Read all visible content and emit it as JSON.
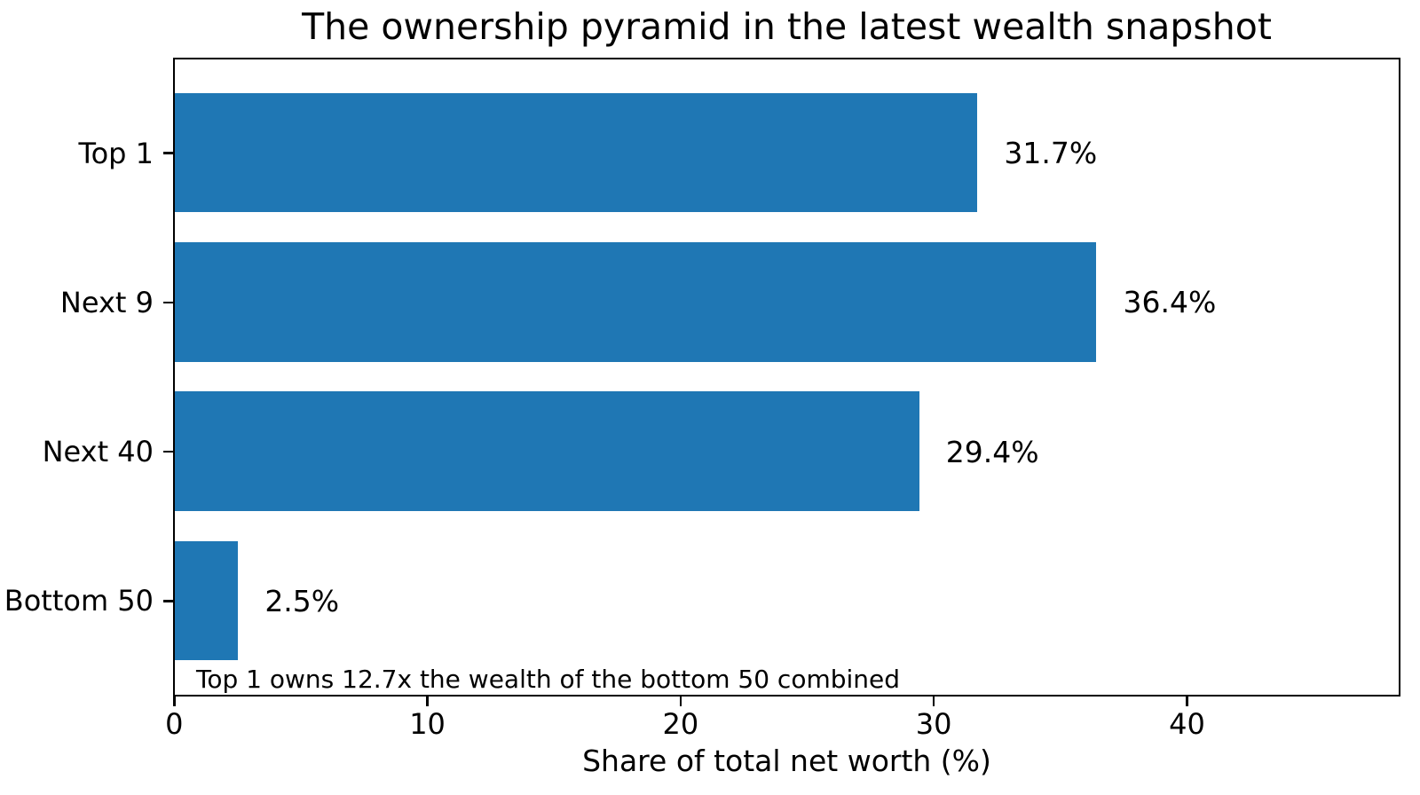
{
  "chart_data": {
    "type": "bar",
    "orientation": "horizontal",
    "title": "The ownership pyramid in the latest wealth snapshot",
    "xlabel": "Share of total net worth (%)",
    "ylabel": "",
    "categories": [
      "Top 1",
      "Next 9",
      "Next 40",
      "Bottom 50"
    ],
    "values": [
      31.7,
      36.4,
      29.4,
      2.5
    ],
    "value_labels": [
      "31.7%",
      "36.4%",
      "29.4%",
      "2.5%"
    ],
    "xticks": [
      0,
      10,
      20,
      30,
      40
    ],
    "xtick_labels": [
      "0",
      "10",
      "20",
      "30",
      "40"
    ],
    "xlim": [
      0,
      48.3
    ],
    "grid": false,
    "legend": null,
    "bar_color": "#1f77b4",
    "spine_color": "#000000",
    "annotation": "Top 1 owns 12.7x the wealth of the bottom 50 combined"
  }
}
